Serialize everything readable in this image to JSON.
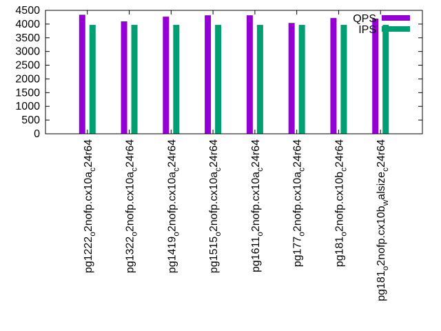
{
  "chart_data": {
    "type": "bar",
    "title": "",
    "xlabel": "",
    "ylabel": "",
    "ylim": [
      0,
      4500
    ],
    "yticks": [
      0,
      500,
      1000,
      1500,
      2000,
      2500,
      3000,
      3500,
      4000,
      4500
    ],
    "grid": false,
    "legend_position": "top-right",
    "categories": [
      {
        "prefix": "pg1222",
        "sub1": "o",
        "mid": "2nofp.cx10a",
        "sub2": "c",
        "suffix": "24r64"
      },
      {
        "prefix": "pg1322",
        "sub1": "o",
        "mid": "2nofp.cx10a",
        "sub2": "c",
        "suffix": "24r64"
      },
      {
        "prefix": "pg1419",
        "sub1": "o",
        "mid": "2nofp.cx10a",
        "sub2": "c",
        "suffix": "24r64"
      },
      {
        "prefix": "pg1515",
        "sub1": "o",
        "mid": "2nofp.cx10a",
        "sub2": "c",
        "suffix": "24r64"
      },
      {
        "prefix": "pg1611",
        "sub1": "o",
        "mid": "2nofp.cx10a",
        "sub2": "c",
        "suffix": "24r64"
      },
      {
        "prefix": "pg177",
        "sub1": "o",
        "mid": "2nofp.cx10a",
        "sub2": "c",
        "suffix": "24r64"
      },
      {
        "prefix": "pg181",
        "sub1": "o",
        "mid": "2nofp.cx10b",
        "sub2": "c",
        "suffix": "24r64"
      },
      {
        "prefix": "pg181",
        "sub1": "o",
        "mid": "2nofp.cx10b",
        "sub2": "w",
        "suffix": "alsize",
        "sub3": "c",
        "suffix2": "24r64"
      }
    ],
    "series": [
      {
        "name": "QPS",
        "color": "#9400d3",
        "values": [
          4340,
          4100,
          4270,
          4320,
          4320,
          4040,
          4220,
          4200
        ]
      },
      {
        "name": "IPS",
        "color": "#009e73",
        "values": [
          3970,
          3970,
          3970,
          3970,
          3970,
          3970,
          3970,
          3970
        ]
      }
    ]
  }
}
